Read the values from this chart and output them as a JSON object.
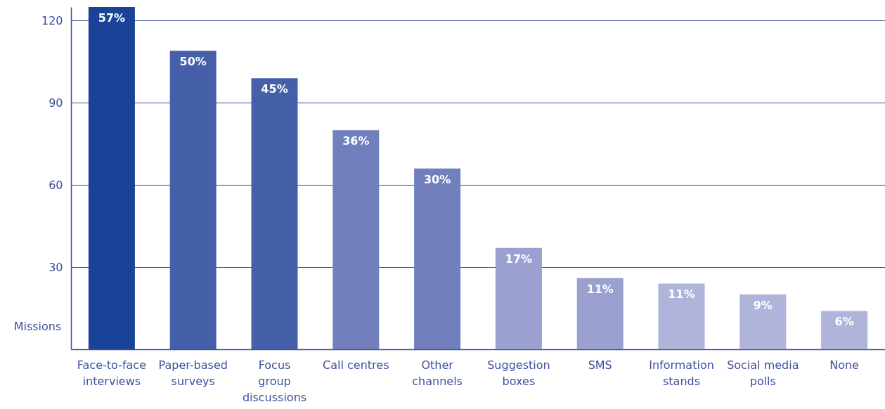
{
  "chart_data": {
    "type": "bar",
    "ylabel": "Missions",
    "categories": [
      "Face-to-face\ninterviews",
      "Paper-based\nsurveys",
      "Focus\ngroup\ndiscussions",
      "Call centres",
      "Other\nchannels",
      "Suggestion\nboxes",
      "SMS",
      "Information\nstands",
      "Social media\npolls",
      "None"
    ],
    "values": [
      125,
      109,
      99,
      80,
      66,
      37,
      26,
      24,
      20,
      14
    ],
    "colors": [
      "#1a4297",
      "#4560a8",
      "#4560a8",
      "#717fbd",
      "#717fbd",
      "#9aa0cf",
      "#9aa0cf",
      "#b0b4da",
      "#b0b4da",
      "#b0b4da"
    ],
    "annotations": [
      {
        "text": "57%",
        "x": "Face-to-face\ninterviews",
        "y": 125
      },
      {
        "text": "50%",
        "x": "Paper-based\nsurveys",
        "y": 109
      },
      {
        "text": "45%",
        "x": "Focus\ngroup\ndiscussions",
        "y": 99
      },
      {
        "text": "36%",
        "x": "Call centres",
        "y": 80
      },
      {
        "text": "30%",
        "x": "Other\nchannels",
        "y": 66
      },
      {
        "text": "17%",
        "x": "Suggestion\nboxes",
        "y": 37
      },
      {
        "text": "11%",
        "x": "SMS",
        "y": 26
      },
      {
        "text": "11%",
        "x": "Information\nstands",
        "y": 24
      },
      {
        "text": "9%",
        "x": "Social media\npolls",
        "y": 20
      },
      {
        "text": "6%",
        "x": "None",
        "y": 14
      }
    ],
    "ylim": [
      0,
      125
    ],
    "yticks": [
      30,
      60,
      90,
      120
    ],
    "grid": "y"
  }
}
